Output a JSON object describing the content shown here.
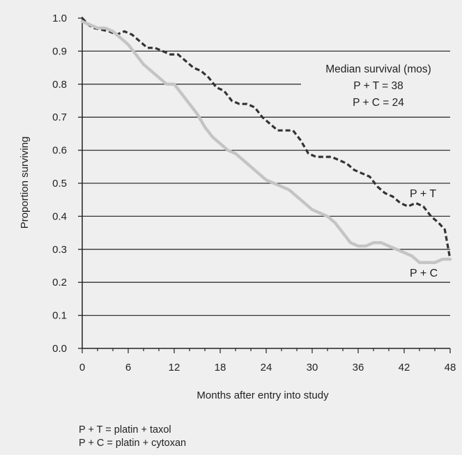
{
  "chart_data": {
    "type": "line",
    "xlabel": "Months after entry into study",
    "ylabel": "Proportion surviving",
    "xlim": [
      0,
      48
    ],
    "ylim": [
      0,
      1
    ],
    "x_ticks": [
      "0",
      "6",
      "12",
      "18",
      "24",
      "30",
      "36",
      "42",
      "48"
    ],
    "y_ticks": [
      "0.0",
      "0.1",
      "0.2",
      "0.3",
      "0.4",
      "0.5",
      "0.6",
      "0.7",
      "0.8",
      "0.9",
      "1.0"
    ],
    "grid": true,
    "series": [
      {
        "name": "P + T",
        "color": "#333333",
        "style": "dashed",
        "x": [
          0,
          0.8,
          1.5,
          3.5,
          4.5,
          5.5,
          6.5,
          7.5,
          8.5,
          9.5,
          10.5,
          11.5,
          12.5,
          13.5,
          14.5,
          15.5,
          16.5,
          17.5,
          18.5,
          19.5,
          20.5,
          21.5,
          22.5,
          23.5,
          24.5,
          25.5,
          26.5,
          27.5,
          28.5,
          29.5,
          30.5,
          31.5,
          32.5,
          33.5,
          34.5,
          35.5,
          36.5,
          37.5,
          38.5,
          39.5,
          40.5,
          41.5,
          42.5,
          43.5,
          44.5,
          45.5,
          46.5,
          47.3,
          48
        ],
        "y": [
          1.0,
          0.98,
          0.97,
          0.96,
          0.95,
          0.96,
          0.95,
          0.93,
          0.91,
          0.91,
          0.9,
          0.89,
          0.89,
          0.87,
          0.85,
          0.84,
          0.82,
          0.79,
          0.78,
          0.75,
          0.74,
          0.74,
          0.73,
          0.7,
          0.68,
          0.66,
          0.66,
          0.66,
          0.63,
          0.59,
          0.58,
          0.58,
          0.58,
          0.57,
          0.56,
          0.54,
          0.53,
          0.52,
          0.49,
          0.47,
          0.46,
          0.44,
          0.43,
          0.44,
          0.43,
          0.4,
          0.38,
          0.36,
          0.27
        ]
      },
      {
        "name": "P + C",
        "color": "#c4c4c4",
        "style": "dotted",
        "x": [
          0,
          1,
          2,
          3,
          4,
          5,
          6,
          7,
          8,
          9,
          10,
          11,
          12,
          13,
          14,
          15,
          16,
          17,
          18,
          19,
          20,
          21,
          22,
          23,
          24,
          25,
          26,
          27,
          28,
          29,
          30,
          31,
          32,
          33,
          34,
          35,
          36,
          37,
          38,
          39,
          40,
          41,
          42,
          43,
          44,
          45,
          46,
          47,
          48
        ],
        "y": [
          0.99,
          0.98,
          0.97,
          0.97,
          0.96,
          0.94,
          0.92,
          0.89,
          0.86,
          0.84,
          0.82,
          0.8,
          0.8,
          0.77,
          0.74,
          0.71,
          0.67,
          0.64,
          0.62,
          0.6,
          0.59,
          0.57,
          0.55,
          0.53,
          0.51,
          0.5,
          0.49,
          0.48,
          0.46,
          0.44,
          0.42,
          0.41,
          0.4,
          0.38,
          0.35,
          0.32,
          0.31,
          0.31,
          0.32,
          0.32,
          0.31,
          0.3,
          0.29,
          0.28,
          0.26,
          0.26,
          0.26,
          0.27,
          0.27
        ]
      }
    ],
    "annotation": {
      "heading": "Median survival (mos)",
      "line1": "P + T = 38",
      "line2": "P + C = 24"
    }
  },
  "footnotes": {
    "line1": "P + T = platin + taxol",
    "line2": "P + C = platin + cytoxan"
  }
}
